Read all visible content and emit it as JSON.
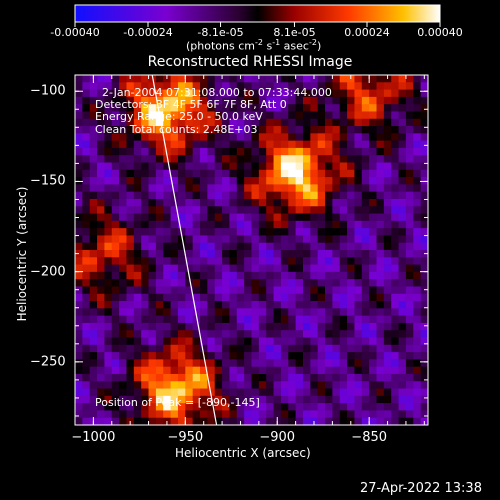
{
  "chart_data": {
    "type": "heatmap",
    "title": "Reconstructed RHESSI Image",
    "xlabel": "Heliocentric X (arcsec)",
    "ylabel": "Heliocentric Y (arcsec)",
    "xlim": [
      -1010,
      -818
    ],
    "ylim": [
      -285,
      -91
    ],
    "x_ticks": [
      -1000,
      -950,
      -900,
      -850
    ],
    "x_tick_labels": [
      "−1000",
      "−950",
      "−900",
      "−850"
    ],
    "y_ticks": [
      -100,
      -150,
      -200,
      -250
    ],
    "y_tick_labels": [
      "−100",
      "−150",
      "−200",
      "−250"
    ],
    "colorbar": {
      "min": -0.0004,
      "max": 0.0004,
      "ticks": [
        -0.0004,
        -0.00024,
        -8.1e-05,
        8.1e-05,
        0.00024,
        0.0004
      ],
      "tick_labels": [
        "-0.00040",
        "-0.00024",
        "-8.1e-05",
        "8.1e-05",
        "0.00024",
        "0.00040"
      ],
      "unit_parts": [
        "(photons cm",
        "-2",
        " s",
        "-1",
        " asec",
        "-2",
        ")"
      ]
    },
    "info_lines": [
      "2-Jan-2004 07:31:08.000 to 07:33:44.000",
      "Detectors: 3F 4F 5F 6F 7F 8F, Att 0",
      "Energy Range: 25.0 - 50.0 keV",
      "Clean    Total counts: 2.48E+03"
    ],
    "peak_label": "Position of Peak = [-890,-145]",
    "limb_line": [
      [
        -968,
        -91
      ],
      [
        -933,
        -285
      ]
    ],
    "bright_regions": [
      {
        "name": "upper-left-source",
        "x": -960,
        "y": -110,
        "peak": 0.0004
      },
      {
        "name": "central-upper-source",
        "x": -890,
        "y": -145,
        "peak": 0.0004
      },
      {
        "name": "lower-left-source",
        "x": -955,
        "y": -265,
        "peak": 0.00038
      },
      {
        "name": "left-mid-source",
        "x": -995,
        "y": -190,
        "peak": 0.00022
      },
      {
        "name": "right-upper-source",
        "x": -850,
        "y": -100,
        "peak": 0.00024
      }
    ],
    "grid": false
  },
  "footer": {
    "timestamp": "27-Apr-2022 13:38"
  }
}
